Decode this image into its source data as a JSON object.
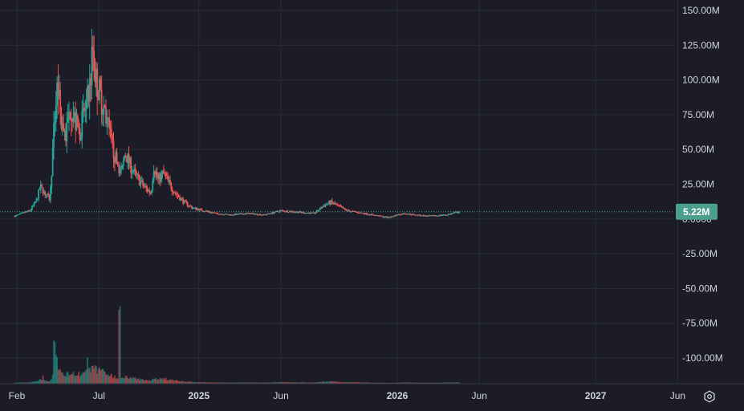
{
  "colors": {
    "background": "#1b1c27",
    "grid": "#2a2c3a",
    "up": "#26a69a",
    "down": "#ef5350",
    "text": "#d1d4dc",
    "last_price_line": "#4fa79a",
    "last_price_badge": "#4c9e8d"
  },
  "icons": {
    "settings": "gear-icon"
  },
  "chart_data": {
    "type": "candlestick",
    "y_axis": {
      "ticks": [
        150,
        125,
        100,
        75,
        50,
        25,
        0,
        -25,
        -50,
        -75,
        -100
      ],
      "tick_labels": [
        "150.00M",
        "125.00M",
        "100.00M",
        "75.00M",
        "50.00M",
        "25.00M",
        "0.0000",
        "-25.00M",
        "-50.00M",
        "-75.00M",
        "-100.00M"
      ],
      "range": [
        -118,
        158
      ],
      "unit": "M"
    },
    "x_axis": {
      "tick_labels": [
        {
          "label": "Feb",
          "date": "2024-02-01",
          "bold": false
        },
        {
          "label": "Jul",
          "date": "2024-07-01",
          "bold": false
        },
        {
          "label": "2025",
          "date": "2025-01-01",
          "bold": true
        },
        {
          "label": "Jun",
          "date": "2025-06-01",
          "bold": false
        },
        {
          "label": "2026",
          "date": "2026-01-01",
          "bold": true
        },
        {
          "label": "Jun",
          "date": "2026-06-01",
          "bold": false
        },
        {
          "label": "2027",
          "date": "2027-01-01",
          "bold": true
        },
        {
          "label": "Jun",
          "date": "2027-06-01",
          "bold": false
        }
      ]
    },
    "last_price": {
      "value": 5.22,
      "label": "5.22M"
    },
    "price_path": [
      [
        "2024-01-28",
        2
      ],
      [
        "2024-02-10",
        4
      ],
      [
        "2024-02-25",
        6
      ],
      [
        "2024-03-08",
        13
      ],
      [
        "2024-03-15",
        23
      ],
      [
        "2024-03-25",
        18
      ],
      [
        "2024-04-02",
        14
      ],
      [
        "2024-04-10",
        70
      ],
      [
        "2024-04-16",
        97
      ],
      [
        "2024-04-22",
        72
      ],
      [
        "2024-05-01",
        60
      ],
      [
        "2024-05-10",
        82
      ],
      [
        "2024-05-18",
        70
      ],
      [
        "2024-05-26",
        62
      ],
      [
        "2024-06-05",
        78
      ],
      [
        "2024-06-12",
        88
      ],
      [
        "2024-06-20",
        120
      ],
      [
        "2024-06-26",
        100
      ],
      [
        "2024-07-03",
        90
      ],
      [
        "2024-07-12",
        78
      ],
      [
        "2024-07-20",
        62
      ],
      [
        "2024-07-28",
        48
      ],
      [
        "2024-08-05",
        38
      ],
      [
        "2024-08-12",
        33
      ],
      [
        "2024-08-18",
        48
      ],
      [
        "2024-08-26",
        40
      ],
      [
        "2024-09-05",
        32
      ],
      [
        "2024-09-15",
        27
      ],
      [
        "2024-09-25",
        22
      ],
      [
        "2024-10-05",
        19
      ],
      [
        "2024-10-10",
        38
      ],
      [
        "2024-10-18",
        28
      ],
      [
        "2024-10-28",
        33
      ],
      [
        "2024-11-08",
        25
      ],
      [
        "2024-11-20",
        18
      ],
      [
        "2024-12-05",
        12
      ],
      [
        "2024-12-20",
        8
      ],
      [
        "2025-01-10",
        6
      ],
      [
        "2025-02-01",
        4
      ],
      [
        "2025-03-01",
        3
      ],
      [
        "2025-04-01",
        4
      ],
      [
        "2025-05-01",
        3
      ],
      [
        "2025-06-01",
        6
      ],
      [
        "2025-07-01",
        5
      ],
      [
        "2025-08-01",
        4
      ],
      [
        "2025-08-20",
        10
      ],
      [
        "2025-09-01",
        12
      ],
      [
        "2025-09-15",
        9
      ],
      [
        "2025-10-01",
        6
      ],
      [
        "2025-11-01",
        4
      ],
      [
        "2025-12-01",
        2
      ],
      [
        "2025-12-15",
        1
      ],
      [
        "2026-01-01",
        3
      ],
      [
        "2026-01-15",
        4
      ],
      [
        "2026-02-01",
        3
      ],
      [
        "2026-03-01",
        2
      ],
      [
        "2026-04-01",
        3
      ],
      [
        "2026-04-25",
        5.22
      ]
    ],
    "volume_spikes": [
      [
        "2024-04-10",
        55
      ],
      [
        "2024-04-14",
        35
      ],
      [
        "2024-04-20",
        18
      ],
      [
        "2024-06-10",
        30
      ],
      [
        "2024-06-20",
        14
      ],
      [
        "2024-08-08",
        88
      ],
      [
        "2024-03-20",
        10
      ],
      [
        "2024-07-10",
        10
      ]
    ]
  }
}
